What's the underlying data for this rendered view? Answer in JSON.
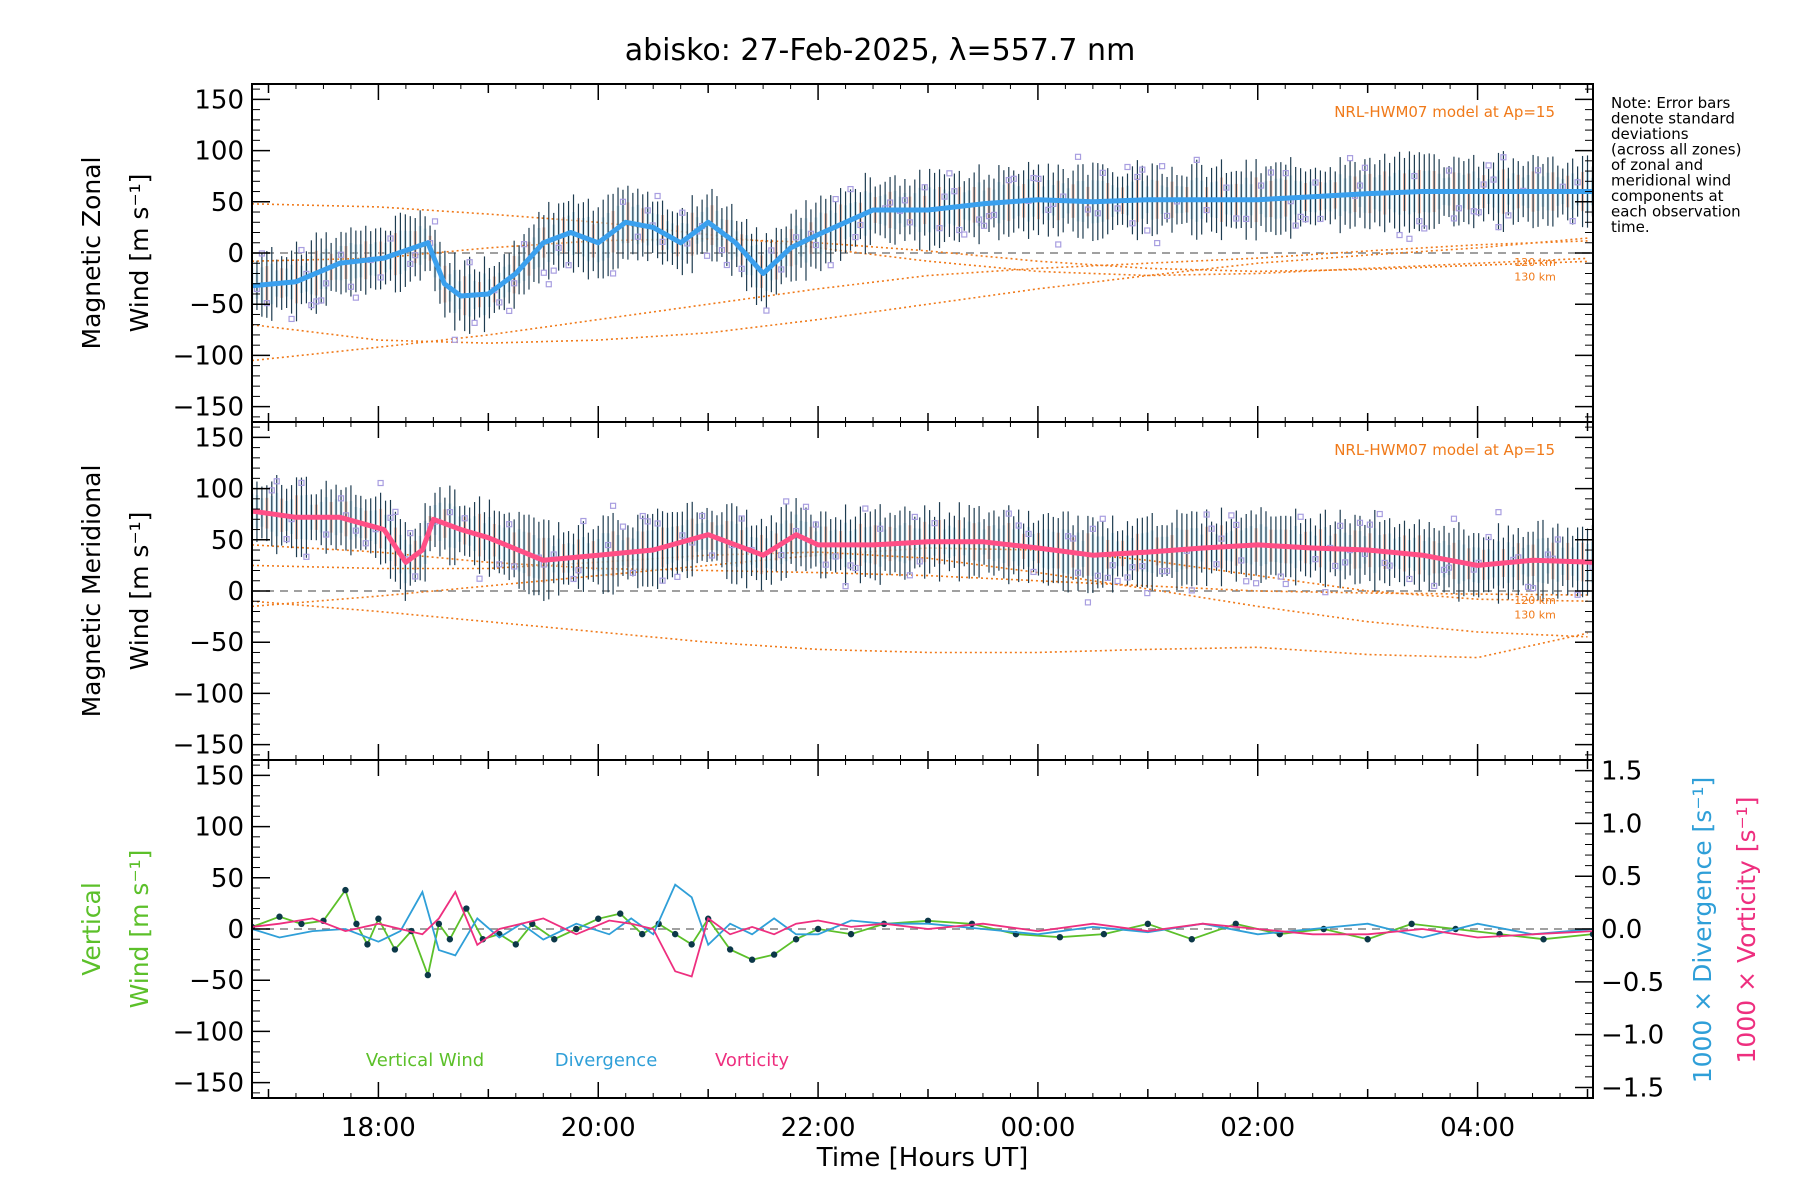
{
  "title": "abisko: 27-Feb-2025, λ=557.7 nm",
  "note_lines": [
    "Note: Error bars",
    "denote standard",
    "deviations",
    "(across all zones)",
    "of zonal and",
    "meridional wind",
    "components at",
    "each observation",
    "time."
  ],
  "colors": {
    "zonal_mean": "#3aa0ee",
    "meridional_mean": "#ff4f86",
    "model": "#f07a1a",
    "scatter": "#a89ee0",
    "errorbar": "#1e3c50",
    "vertical": "#5cc02a",
    "divergence": "#2f9fd8",
    "vorticity": "#ee2f7f",
    "zero_line": "#808080"
  },
  "chart_data": [
    {
      "type": "line",
      "panel": "zonal",
      "ylabel_lines": [
        "Magnetic Zonal",
        "Wind [m s⁻¹]"
      ],
      "ylim": [
        -165,
        165
      ],
      "yticks": [
        "150",
        "100",
        "50",
        "0",
        "−50",
        "−100",
        "−150"
      ],
      "model_label": "NRL-HWM07 model at Ap=15",
      "model_altitudes": [
        "120 km",
        "130 km"
      ],
      "x_hours": [
        16.85,
        17.25,
        17.65,
        18.05,
        18.45,
        18.6,
        18.75,
        19.0,
        19.25,
        19.5,
        19.75,
        20.0,
        20.25,
        20.5,
        20.75,
        21.0,
        21.25,
        21.5,
        21.75,
        22.0,
        22.25,
        22.5,
        22.75,
        23.0,
        23.5,
        24.0,
        24.5,
        25.0,
        25.5,
        26.0,
        26.5,
        27.0,
        27.5,
        28.0,
        28.5,
        29.05
      ],
      "mean": [
        -32,
        -28,
        -10,
        -5,
        10,
        -30,
        -42,
        -40,
        -20,
        10,
        20,
        10,
        30,
        25,
        10,
        30,
        10,
        -20,
        5,
        18,
        30,
        42,
        42,
        42,
        48,
        52,
        50,
        52,
        52,
        52,
        55,
        58,
        60,
        60,
        60,
        60
      ],
      "model_curves": [
        {
          "name": "m1",
          "x": [
            16.85,
            18.0,
            19.0,
            20.0,
            21.0,
            22.0,
            23.0,
            24.0,
            25.0,
            26.0,
            27.0,
            28.0,
            29.05
          ],
          "y": [
            -70,
            -85,
            -88,
            -85,
            -78,
            -65,
            -50,
            -35,
            -22,
            -10,
            -2,
            5,
            15
          ]
        },
        {
          "name": "m2",
          "x": [
            16.85,
            18.0,
            19.0,
            20.0,
            21.0,
            22.0,
            23.0,
            24.0,
            25.0,
            26.0,
            27.0,
            28.0,
            29.05
          ],
          "y": [
            -105,
            -92,
            -80,
            -65,
            -50,
            -35,
            -22,
            -15,
            -10,
            -5,
            2,
            8,
            12
          ]
        },
        {
          "name": "m3",
          "x": [
            16.85,
            18.0,
            19.0,
            20.0,
            21.0,
            22.0,
            23.0,
            24.0,
            25.0,
            26.0,
            27.0,
            28.0,
            29.05
          ],
          "y": [
            48,
            45,
            38,
            30,
            18,
            5,
            -8,
            -18,
            -22,
            -20,
            -15,
            -10,
            -5
          ]
        },
        {
          "name": "m4",
          "x": [
            16.85,
            18.0,
            19.0,
            20.0,
            21.0,
            22.0,
            23.0,
            24.0,
            25.0,
            26.0,
            27.0,
            28.0,
            29.05
          ],
          "y": [
            -8,
            -5,
            5,
            12,
            14,
            10,
            2,
            -8,
            -15,
            -18,
            -16,
            -12,
            -8
          ]
        }
      ]
    },
    {
      "type": "line",
      "panel": "meridional",
      "ylabel_lines": [
        "Magnetic Meridional",
        "Wind [m s⁻¹]"
      ],
      "ylim": [
        -165,
        165
      ],
      "yticks": [
        "150",
        "100",
        "50",
        "0",
        "−50",
        "−100",
        "−150"
      ],
      "model_label": "NRL-HWM07 model at Ap=15",
      "model_altitudes": [
        "120 km",
        "130 km"
      ],
      "x_hours": [
        16.85,
        17.25,
        17.65,
        18.05,
        18.25,
        18.4,
        18.5,
        18.75,
        19.0,
        19.5,
        20.0,
        20.5,
        21.0,
        21.5,
        21.8,
        22.0,
        22.5,
        23.0,
        23.5,
        24.0,
        24.5,
        25.0,
        25.5,
        26.0,
        26.5,
        27.0,
        27.5,
        28.0,
        28.5,
        29.05
      ],
      "mean": [
        78,
        72,
        72,
        60,
        28,
        40,
        70,
        60,
        52,
        30,
        35,
        40,
        55,
        35,
        55,
        45,
        45,
        48,
        48,
        42,
        35,
        38,
        42,
        45,
        42,
        40,
        35,
        25,
        30,
        28
      ],
      "model_curves": [
        {
          "name": "m1",
          "x": [
            16.85,
            18.0,
            19.0,
            20.0,
            21.0,
            22.0,
            23.0,
            24.0,
            25.0,
            26.0,
            27.0,
            28.0,
            29.05
          ],
          "y": [
            25,
            22,
            22,
            28,
            35,
            38,
            32,
            18,
            2,
            -15,
            -30,
            -40,
            -45
          ]
        },
        {
          "name": "m2",
          "x": [
            16.85,
            18.0,
            19.0,
            20.0,
            21.0,
            22.0,
            23.0,
            24.0,
            25.0,
            26.0,
            27.0,
            28.0,
            29.05
          ],
          "y": [
            -10,
            -20,
            -30,
            -40,
            -50,
            -57,
            -60,
            -60,
            -57,
            -55,
            -62,
            -65,
            -40
          ]
        },
        {
          "name": "m3",
          "x": [
            16.85,
            18.0,
            19.0,
            20.0,
            21.0,
            22.0,
            23.0,
            24.0,
            25.0,
            26.0,
            27.0,
            28.0,
            29.05
          ],
          "y": [
            -15,
            -5,
            5,
            15,
            25,
            35,
            42,
            40,
            30,
            15,
            0,
            -8,
            -10
          ]
        },
        {
          "name": "m4",
          "x": [
            16.85,
            18.0,
            19.0,
            20.0,
            21.0,
            22.0,
            23.0,
            24.0,
            25.0,
            26.0,
            27.0,
            28.0,
            29.05
          ],
          "y": [
            45,
            38,
            28,
            22,
            20,
            18,
            15,
            10,
            5,
            0,
            -2,
            -3,
            -4
          ]
        }
      ]
    },
    {
      "type": "line",
      "panel": "vertical",
      "ylabel_lines": [
        "Vertical",
        "Wind [m s⁻¹]"
      ],
      "ylim": [
        -165,
        165
      ],
      "yticks": [
        "150",
        "100",
        "50",
        "0",
        "−50",
        "−100",
        "−150"
      ],
      "y2lim": [
        -1.6,
        1.6
      ],
      "y2ticks": [
        "1.5",
        "1.0",
        "0.5",
        "0.0",
        "−0.5",
        "−1.0",
        "−1.5"
      ],
      "y2label_div": "1000 × Divergence [s⁻¹]",
      "y2label_vort": "1000 × Vorticity [s⁻¹]",
      "xlabel": "Time [Hours UT]",
      "xticks": [
        "18:00",
        "20:00",
        "22:00",
        "00:00",
        "02:00",
        "04:00"
      ],
      "xlim": [
        16.85,
        29.05
      ],
      "legend": [
        "Vertical Wind",
        "Divergence",
        "Vorticity"
      ],
      "series": [
        {
          "name": "Vertical Wind",
          "x": [
            16.85,
            17.1,
            17.3,
            17.5,
            17.7,
            17.8,
            17.9,
            18.0,
            18.15,
            18.3,
            18.45,
            18.55,
            18.65,
            18.8,
            18.95,
            19.1,
            19.25,
            19.4,
            19.6,
            19.8,
            20.0,
            20.2,
            20.4,
            20.55,
            20.7,
            20.85,
            21.0,
            21.2,
            21.4,
            21.6,
            21.8,
            22.0,
            22.3,
            22.6,
            23.0,
            23.4,
            23.8,
            24.2,
            24.6,
            25.0,
            25.4,
            25.8,
            26.2,
            26.6,
            27.0,
            27.4,
            27.8,
            28.2,
            28.6,
            29.05
          ],
          "y": [
            2,
            12,
            5,
            8,
            38,
            5,
            -15,
            10,
            -20,
            -2,
            -45,
            5,
            -10,
            20,
            -10,
            -5,
            -15,
            5,
            -10,
            0,
            10,
            15,
            -5,
            5,
            -5,
            -15,
            10,
            -20,
            -30,
            -25,
            -10,
            0,
            -5,
            5,
            8,
            5,
            -5,
            -8,
            -5,
            5,
            -10,
            5,
            -5,
            0,
            -10,
            5,
            0,
            -5,
            -10,
            -5
          ]
        },
        {
          "name": "Divergence",
          "x": [
            16.85,
            17.1,
            17.4,
            17.7,
            18.0,
            18.2,
            18.4,
            18.55,
            18.7,
            18.9,
            19.1,
            19.3,
            19.5,
            19.8,
            20.1,
            20.3,
            20.5,
            20.7,
            20.85,
            21.0,
            21.2,
            21.4,
            21.6,
            21.8,
            22.0,
            22.3,
            22.6,
            23.0,
            23.5,
            24.0,
            24.5,
            25.0,
            25.5,
            26.0,
            26.5,
            27.0,
            27.5,
            28.0,
            28.5,
            29.05
          ],
          "y": [
            0.0,
            -0.08,
            -0.02,
            0.0,
            -0.12,
            -0.02,
            0.35,
            -0.2,
            -0.25,
            0.1,
            -0.08,
            0.05,
            -0.1,
            0.05,
            -0.05,
            0.1,
            -0.05,
            0.42,
            0.3,
            -0.15,
            0.05,
            -0.05,
            0.1,
            -0.05,
            -0.05,
            0.08,
            0.05,
            0.05,
            0.0,
            -0.05,
            0.02,
            -0.03,
            0.05,
            -0.05,
            0.0,
            0.05,
            -0.08,
            0.05,
            -0.05,
            0.0
          ]
        },
        {
          "name": "Vorticity",
          "x": [
            16.85,
            17.1,
            17.4,
            17.7,
            18.0,
            18.2,
            18.4,
            18.55,
            18.7,
            18.9,
            19.1,
            19.3,
            19.5,
            19.8,
            20.1,
            20.3,
            20.5,
            20.7,
            20.85,
            21.0,
            21.2,
            21.4,
            21.6,
            21.8,
            22.0,
            22.3,
            22.6,
            23.0,
            23.5,
            24.0,
            24.5,
            25.0,
            25.5,
            26.0,
            26.5,
            27.0,
            27.5,
            28.0,
            28.5,
            29.05
          ],
          "y": [
            0.02,
            0.05,
            0.1,
            -0.02,
            0.05,
            0.0,
            -0.05,
            0.1,
            0.35,
            -0.15,
            0.0,
            0.05,
            0.1,
            -0.05,
            0.08,
            0.05,
            0.0,
            -0.4,
            -0.45,
            0.1,
            -0.05,
            0.02,
            -0.05,
            0.05,
            0.08,
            0.02,
            0.05,
            0.0,
            0.05,
            -0.02,
            0.05,
            -0.02,
            0.05,
            0.0,
            -0.05,
            -0.05,
            0.0,
            -0.08,
            -0.05,
            -0.02
          ]
        }
      ]
    }
  ]
}
